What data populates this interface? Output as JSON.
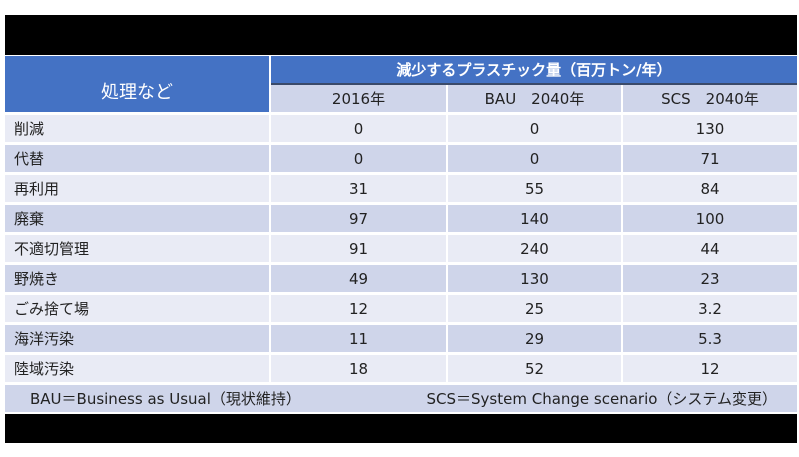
{
  "table": {
    "header": {
      "process_label": "処理など",
      "group_label": "減少するプラスチック量（百万トン/年）",
      "columns": [
        "2016年",
        "BAU　2040年",
        "SCS　2040年"
      ]
    },
    "rows": [
      {
        "label": "削減",
        "values": [
          "0",
          "0",
          "130"
        ]
      },
      {
        "label": "代替",
        "values": [
          "0",
          "0",
          "71"
        ]
      },
      {
        "label": "再利用",
        "values": [
          "31",
          "55",
          "84"
        ]
      },
      {
        "label": "廃棄",
        "values": [
          "97",
          "140",
          "100"
        ]
      },
      {
        "label": "不適切管理",
        "values": [
          "91",
          "240",
          "44"
        ]
      },
      {
        "label": "野焼き",
        "values": [
          "49",
          "130",
          "23"
        ]
      },
      {
        "label": "ごみ捨て場",
        "values": [
          "12",
          "25",
          "3.2"
        ]
      },
      {
        "label": "海洋汚染",
        "values": [
          "11",
          "29",
          "5.3"
        ]
      },
      {
        "label": "陸域汚染",
        "values": [
          "18",
          "52",
          "12"
        ]
      }
    ],
    "footer": {
      "bau_note": "BAU＝Business as Usual（現状維持）",
      "scs_note": "SCS＝System Change scenario（システム変更）"
    }
  },
  "colors": {
    "header_blue": "#4472c4",
    "row_dark": "#cfd5ea",
    "row_light": "#e9ebf5"
  }
}
